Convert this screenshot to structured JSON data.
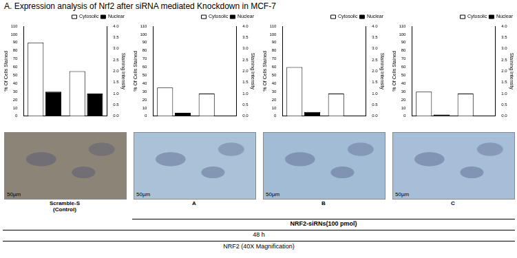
{
  "figure_title": "A. Expression analysis of Nrf2 after siRNA mediated Knockdown in MCF-7",
  "chart_data": [
    {
      "type": "bar",
      "categories": [
        null,
        null
      ],
      "series": [
        {
          "name": "Cytosolic",
          "color": "#ffffff",
          "values": [
            90,
            null
          ]
        },
        {
          "name": "Nuclear",
          "color": "#000000",
          "values": [
            30,
            null
          ]
        },
        {
          "name": "Cytosolic",
          "color": "#ffffff",
          "axis": "y2",
          "values": [
            null,
            2.0
          ]
        },
        {
          "name": "Nuclear",
          "color": "#000000",
          "axis": "y2",
          "values": [
            null,
            1.0
          ]
        }
      ],
      "y_label": "% Of Cells Stained",
      "y2_label": "Staining Intensity",
      "ylim": [
        0,
        110
      ],
      "yticks": [
        0,
        10,
        20,
        30,
        40,
        50,
        60,
        70,
        80,
        90,
        100,
        110
      ],
      "y2lim": [
        0,
        4
      ],
      "y2ticks": [
        {
          "value": 0,
          "label": "0.0"
        },
        {
          "value": 0.5,
          "label": "0.5"
        },
        {
          "value": 1,
          "label": "1.0"
        },
        {
          "value": 1.5,
          "label": "1.5"
        },
        {
          "value": 2,
          "label": "2.0"
        },
        {
          "value": 2.5,
          "label": "2.5"
        },
        {
          "value": 3,
          "label": "3.0"
        },
        {
          "value": 3.5,
          "label": "3.5"
        },
        {
          "value": 4,
          "label": "4.0"
        }
      ],
      "legend": "top-right",
      "grid": false
    },
    {
      "type": "bar",
      "categories": [
        null,
        null
      ],
      "series": [
        {
          "name": "Cytosolic",
          "color": "#ffffff",
          "values": [
            35,
            null
          ]
        },
        {
          "name": "Nuclear",
          "color": "#000000",
          "values": [
            4,
            null
          ]
        },
        {
          "name": "Cytosolic",
          "color": "#ffffff",
          "axis": "y2",
          "values": [
            null,
            1.0
          ]
        },
        {
          "name": "Nuclear",
          "color": "#000000",
          "axis": "y2",
          "values": [
            null,
            0
          ]
        }
      ],
      "y_label": "% Of Cells Stained",
      "y2_label": "Staining Intensity",
      "ylim": [
        0,
        110
      ],
      "yticks": [
        0,
        10,
        20,
        30,
        40,
        50,
        60,
        70,
        80,
        90,
        100,
        110
      ],
      "y2lim": [
        0,
        4
      ],
      "y2ticks": [
        {
          "value": 0,
          "label": "0.0"
        },
        {
          "value": 0.5,
          "label": "0.5"
        },
        {
          "value": 1,
          "label": "1.0"
        },
        {
          "value": 1.5,
          "label": "1.5"
        },
        {
          "value": 2,
          "label": "2.0"
        },
        {
          "value": 2.5,
          "label": "2.5"
        },
        {
          "value": 3,
          "label": "3.0"
        },
        {
          "value": 3.5,
          "label": "3.5"
        },
        {
          "value": 4,
          "label": "4.0"
        }
      ],
      "legend": "top-right",
      "grid": false
    },
    {
      "type": "bar",
      "categories": [
        null,
        null
      ],
      "series": [
        {
          "name": "Cytosolic",
          "color": "#ffffff",
          "values": [
            60,
            null
          ]
        },
        {
          "name": "Nuclear",
          "color": "#000000",
          "values": [
            5,
            null
          ]
        },
        {
          "name": "Cytosolic",
          "color": "#ffffff",
          "axis": "y2",
          "values": [
            null,
            1.0
          ]
        },
        {
          "name": "Nuclear",
          "color": "#000000",
          "axis": "y2",
          "values": [
            null,
            0
          ]
        }
      ],
      "y_label": "% Of Cells Stained",
      "y2_label": "Staining Intensity",
      "ylim": [
        0,
        110
      ],
      "yticks": [
        0,
        10,
        20,
        30,
        40,
        50,
        60,
        70,
        80,
        90,
        100,
        110
      ],
      "y2lim": [
        0,
        4
      ],
      "y2ticks": [
        {
          "value": 0,
          "label": "0.0"
        },
        {
          "value": 0.5,
          "label": "0.5"
        },
        {
          "value": 1,
          "label": "1.0"
        },
        {
          "value": 1.5,
          "label": "1.5"
        },
        {
          "value": 2,
          "label": "2.0"
        },
        {
          "value": 2.5,
          "label": "2.5"
        },
        {
          "value": 3,
          "label": "3.0"
        },
        {
          "value": 3.5,
          "label": "3.5"
        },
        {
          "value": 4,
          "label": "4.0"
        }
      ],
      "legend": "top-right",
      "grid": false
    },
    {
      "type": "bar",
      "categories": [
        null,
        null
      ],
      "series": [
        {
          "name": "Cytosolic",
          "color": "#ffffff",
          "values": [
            30,
            null
          ]
        },
        {
          "name": "Nuclear",
          "color": "#000000",
          "values": [
            2,
            null
          ]
        },
        {
          "name": "Cytosolic",
          "color": "#ffffff",
          "axis": "y2",
          "values": [
            null,
            1.0
          ]
        },
        {
          "name": "Nuclear",
          "color": "#000000",
          "axis": "y2",
          "values": [
            null,
            0
          ]
        }
      ],
      "y_label": "% Of Cells Stained",
      "y2_label": "Staining Intensity",
      "ylim": [
        0,
        110
      ],
      "yticks": [
        0,
        10,
        20,
        30,
        40,
        50,
        60,
        70,
        80,
        90,
        100,
        110
      ],
      "y2lim": [
        0,
        4
      ],
      "y2ticks": [
        {
          "value": 0,
          "label": "0.0"
        },
        {
          "value": 0.5,
          "label": "0.5"
        },
        {
          "value": 1,
          "label": "1.0"
        },
        {
          "value": 1.5,
          "label": "1.5"
        },
        {
          "value": 2,
          "label": "2.0"
        },
        {
          "value": 2.5,
          "label": "2.5"
        },
        {
          "value": 3,
          "label": "3.0"
        },
        {
          "value": 3.5,
          "label": "3.5"
        },
        {
          "value": 4,
          "label": "4.0"
        }
      ],
      "legend": "top-right",
      "grid": false
    }
  ],
  "scale_bar": "50µm",
  "panel_labels": [
    "Scramble-S (Control)",
    "A",
    "B",
    "C"
  ],
  "group_label": "NRF2-siRNs(100 pmol)",
  "time_label": "48 h",
  "stain_label": "NRF2 (40X Magnification)"
}
